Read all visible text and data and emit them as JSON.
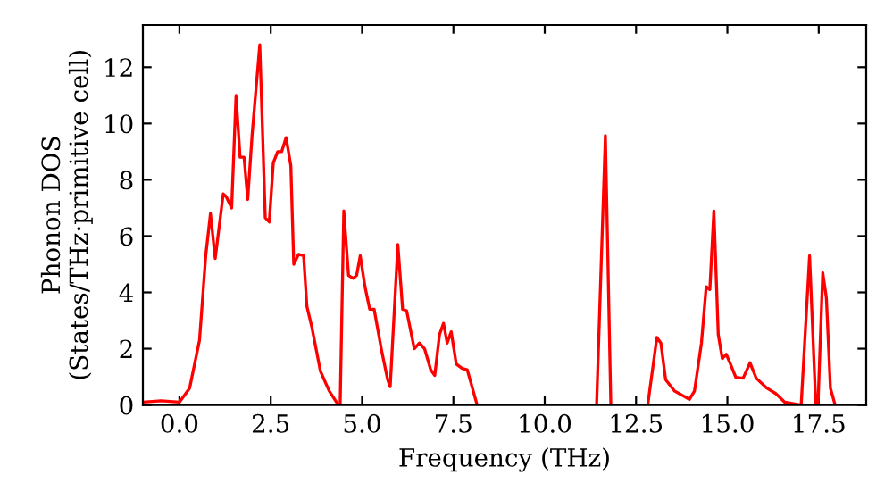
{
  "chart_data": {
    "type": "line",
    "xlabel": "Frequency (THz)",
    "ylabel": "Phonon DOS\n(States/THz·primitive cell)",
    "xlim": [
      -1.0,
      18.8
    ],
    "ylim": [
      0,
      13.5
    ],
    "xticks": [
      {
        "value": 0,
        "label": "0.0"
      },
      {
        "value": 2.5,
        "label": "2.5"
      },
      {
        "value": 5,
        "label": "5.0"
      },
      {
        "value": 7.5,
        "label": "7.5"
      },
      {
        "value": 10,
        "label": "10.0"
      },
      {
        "value": 12.5,
        "label": "12.5"
      },
      {
        "value": 15,
        "label": "15.0"
      },
      {
        "value": 17.5,
        "label": "17.5"
      }
    ],
    "yticks": [
      0,
      2,
      4,
      6,
      8,
      10,
      12
    ],
    "grid": false,
    "legend": false,
    "marker": "none",
    "line_style": "solid",
    "series": [
      {
        "color": "#ff0000",
        "x": [
          -1.0,
          -0.5,
          0.0,
          0.28,
          0.55,
          0.72,
          0.85,
          0.98,
          1.2,
          1.28,
          1.43,
          1.55,
          1.66,
          1.77,
          1.87,
          1.99,
          2.2,
          2.35,
          2.46,
          2.57,
          2.69,
          2.8,
          2.92,
          3.05,
          3.13,
          3.26,
          3.4,
          3.49,
          3.62,
          3.86,
          4.1,
          4.35,
          4.4,
          4.5,
          4.63,
          4.76,
          4.85,
          4.95,
          5.08,
          5.21,
          5.33,
          5.54,
          5.7,
          5.77,
          5.98,
          6.11,
          6.22,
          6.43,
          6.57,
          6.71,
          6.88,
          6.99,
          7.12,
          7.23,
          7.33,
          7.44,
          7.58,
          7.74,
          7.88,
          8.15,
          11.42,
          11.66,
          11.81,
          12.82,
          13.07,
          13.18,
          13.31,
          13.55,
          13.96,
          14.1,
          14.29,
          14.42,
          14.52,
          14.63,
          14.75,
          14.86,
          14.97,
          15.1,
          15.23,
          15.43,
          15.62,
          15.79,
          16.08,
          16.33,
          16.57,
          17.02,
          17.25,
          17.42,
          17.48,
          17.61,
          17.71,
          17.82,
          17.95,
          18.7
        ],
        "values": [
          0.1,
          0.15,
          0.1,
          0.6,
          2.3,
          5.3,
          6.8,
          5.2,
          7.5,
          7.4,
          7.0,
          11.0,
          8.8,
          8.8,
          7.3,
          9.6,
          12.8,
          6.65,
          6.5,
          8.6,
          9.0,
          9.0,
          9.5,
          8.5,
          5.0,
          5.35,
          5.3,
          3.5,
          2.8,
          1.2,
          0.5,
          0.0,
          0.0,
          6.9,
          4.6,
          4.5,
          4.6,
          5.3,
          4.2,
          3.4,
          3.4,
          1.9,
          0.9,
          0.65,
          5.7,
          3.4,
          3.35,
          2.0,
          2.2,
          2.0,
          1.25,
          1.05,
          2.5,
          2.9,
          2.2,
          2.6,
          1.45,
          1.3,
          1.25,
          0.0,
          0.0,
          9.57,
          0.0,
          0.0,
          2.4,
          2.2,
          0.9,
          0.5,
          0.2,
          0.5,
          2.2,
          4.2,
          4.1,
          6.9,
          2.5,
          1.65,
          1.8,
          1.4,
          0.98,
          0.95,
          1.5,
          0.95,
          0.6,
          0.4,
          0.1,
          0.0,
          5.3,
          0.0,
          0.0,
          4.7,
          3.8,
          0.6,
          0.0,
          0.0
        ]
      }
    ]
  }
}
